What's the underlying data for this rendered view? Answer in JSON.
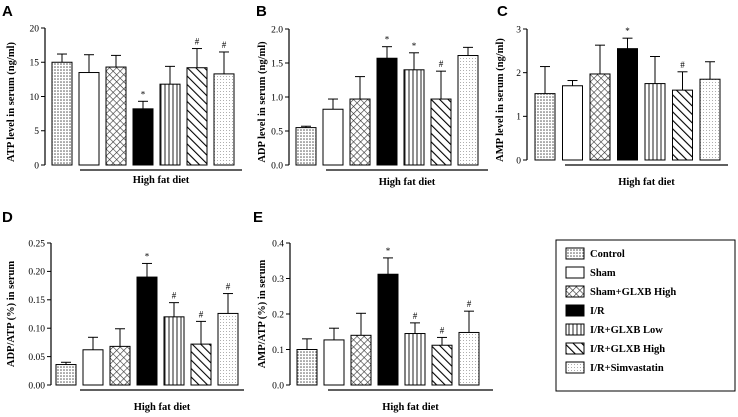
{
  "legend": [
    {
      "label": "Control",
      "pattern": "dots"
    },
    {
      "label": "Sham",
      "pattern": "white"
    },
    {
      "label": "Sham+GLXB High",
      "pattern": "crosshatch"
    },
    {
      "label": "I/R",
      "pattern": "black"
    },
    {
      "label": "I/R+GLXB Low",
      "pattern": "vlines"
    },
    {
      "label": "I/R+GLXB High",
      "pattern": "diag"
    },
    {
      "label": "I/R+Simvastatin",
      "pattern": "finedots"
    }
  ],
  "chart_data": [
    {
      "panel": "A",
      "type": "bar",
      "ylabel": "ATP level in serum (ng/ml)",
      "ylim": [
        0,
        20
      ],
      "yticks": [
        "0",
        "5",
        "10",
        "15",
        "20"
      ],
      "bracket_label": "High fat diet",
      "categories": [
        "Control",
        "Sham",
        "Sham+GLXB High",
        "I/R",
        "I/R+GLXB Low",
        "I/R+GLXB High",
        "I/R+Simvastatin"
      ],
      "values": [
        15.0,
        13.5,
        14.3,
        8.2,
        11.8,
        14.2,
        13.3
      ],
      "errors": [
        1.2,
        2.6,
        1.7,
        1.1,
        2.6,
        2.8,
        3.2
      ],
      "annotations": [
        "",
        "",
        "",
        "*",
        "",
        "#",
        "#"
      ]
    },
    {
      "panel": "B",
      "type": "bar",
      "ylabel": "ADP level in serum (ng/ml)",
      "ylim": [
        0,
        2.0
      ],
      "yticks": [
        "0.0",
        "0.5",
        "1.0",
        "1.5",
        "2.0"
      ],
      "bracket_label": "High fat diet",
      "categories": [
        "Control",
        "Sham",
        "Sham+GLXB High",
        "I/R",
        "I/R+GLXB Low",
        "I/R+GLXB High",
        "I/R+Simvastatin"
      ],
      "values": [
        0.55,
        0.82,
        0.97,
        1.57,
        1.4,
        0.97,
        1.61
      ],
      "errors": [
        0.02,
        0.15,
        0.33,
        0.17,
        0.25,
        0.41,
        0.12
      ],
      "annotations": [
        "",
        "",
        "",
        "*",
        "*",
        "#",
        ""
      ]
    },
    {
      "panel": "C",
      "type": "bar",
      "ylabel": "AMP level in serum (ng/ml)",
      "ylim": [
        0,
        3
      ],
      "yticks": [
        "0",
        "1",
        "2",
        "3"
      ],
      "bracket_label": "High fat diet",
      "categories": [
        "Control",
        "Sham",
        "Sham+GLXB High",
        "I/R",
        "I/R+GLXB Low",
        "I/R+GLXB High",
        "I/R+Simvastatin"
      ],
      "values": [
        1.52,
        1.7,
        1.97,
        2.55,
        1.75,
        1.6,
        1.85
      ],
      "errors": [
        0.62,
        0.12,
        0.66,
        0.24,
        0.62,
        0.42,
        0.4
      ],
      "annotations": [
        "",
        "",
        "",
        "*",
        "",
        "#",
        ""
      ]
    },
    {
      "panel": "D",
      "type": "bar",
      "ylabel": "ADP/ATP (%) in serum",
      "ylim": [
        0,
        0.25
      ],
      "yticks": [
        "0.00",
        "0.05",
        "0.10",
        "0.15",
        "0.20",
        "0.25"
      ],
      "bracket_label": "High fat diet",
      "categories": [
        "Control",
        "Sham",
        "Sham+GLXB High",
        "I/R",
        "I/R+GLXB Low",
        "I/R+GLXB High",
        "I/R+Simvastatin"
      ],
      "values": [
        0.036,
        0.062,
        0.068,
        0.19,
        0.12,
        0.072,
        0.126
      ],
      "errors": [
        0.004,
        0.022,
        0.031,
        0.024,
        0.025,
        0.04,
        0.035
      ],
      "annotations": [
        "",
        "",
        "",
        "*",
        "#",
        "#",
        "#"
      ]
    },
    {
      "panel": "E",
      "type": "bar",
      "ylabel": "AMP/ATP (%) in serum",
      "ylim": [
        0,
        0.4
      ],
      "yticks": [
        "0.0",
        "0.1",
        "0.2",
        "0.3",
        "0.4"
      ],
      "bracket_label": "High fat diet",
      "categories": [
        "Control",
        "Sham",
        "Sham+GLXB High",
        "I/R",
        "I/R+GLXB Low",
        "I/R+GLXB High",
        "I/R+Simvastatin"
      ],
      "values": [
        0.1,
        0.127,
        0.14,
        0.312,
        0.145,
        0.112,
        0.148
      ],
      "errors": [
        0.03,
        0.033,
        0.062,
        0.046,
        0.03,
        0.022,
        0.06
      ],
      "annotations": [
        "",
        "",
        "",
        "*",
        "#",
        "#",
        "#"
      ]
    }
  ]
}
